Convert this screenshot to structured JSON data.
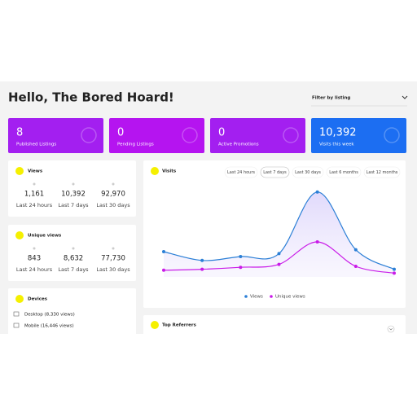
{
  "header": {
    "title": "Hello, The Bored Hoard!",
    "filter": "Filter by listing"
  },
  "stats": [
    {
      "value": "8",
      "label": "Published Listings"
    },
    {
      "value": "0",
      "label": "Pending Listings"
    },
    {
      "value": "0",
      "label": "Active Promotions"
    },
    {
      "value": "10,392",
      "label": "Visits this week"
    }
  ],
  "views": {
    "title": "Views",
    "items": [
      {
        "value": "1,161",
        "label": "Last 24 hours"
      },
      {
        "value": "10,392",
        "label": "Last 7 days"
      },
      {
        "value": "92,970",
        "label": "Last 30 days"
      }
    ]
  },
  "unique_views": {
    "title": "Unique views",
    "items": [
      {
        "value": "843",
        "label": "Last 24 hours"
      },
      {
        "value": "8,632",
        "label": "Last 7 days"
      },
      {
        "value": "77,730",
        "label": "Last 30 days"
      }
    ]
  },
  "devices": {
    "title": "Devices",
    "items": [
      "Desktop (8,330 views)",
      "Mobile (16,446 views)"
    ]
  },
  "visits": {
    "title": "Visits",
    "ranges": [
      "Last 24 hours",
      "Last 7 days",
      "Last 30 days",
      "Last 6 months",
      "Last 12 months"
    ],
    "chart_data": {
      "type": "line",
      "categories": [
        null,
        null,
        null,
        null,
        null,
        null,
        null
      ],
      "series": [
        {
          "name": "Views",
          "color": "#2b7fd6",
          "values": [
            30,
            21,
            25,
            28,
            91,
            32,
            12
          ]
        },
        {
          "name": "Unique views",
          "color": "#c91be8",
          "values": [
            11,
            12,
            14,
            17,
            40,
            15,
            8
          ]
        }
      ],
      "ylim": [
        0,
        100
      ],
      "legend": "bottom"
    }
  },
  "referrers": {
    "title": "Top Referrers"
  }
}
